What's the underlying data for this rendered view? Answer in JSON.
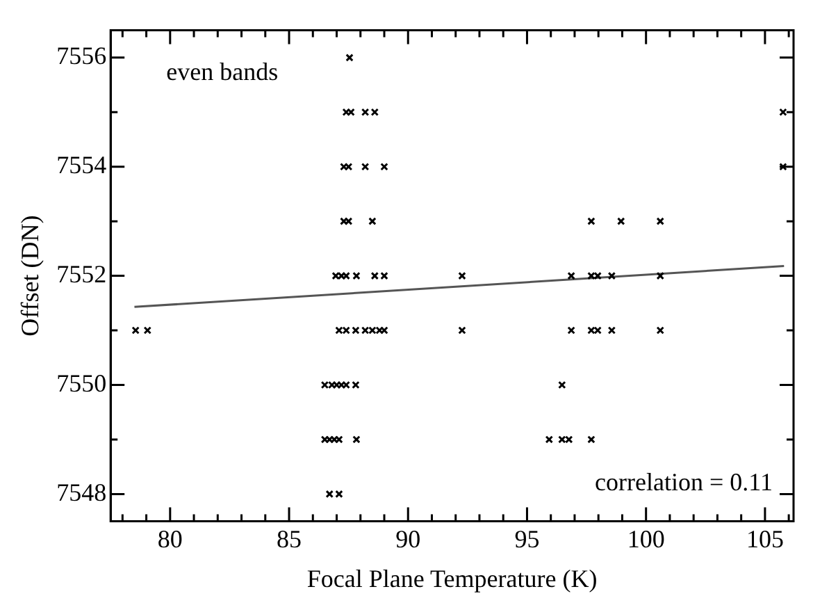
{
  "chart_data": {
    "type": "scatter",
    "xlabel": "Focal Plane Temperature (K)",
    "ylabel": "Offset (DN)",
    "annotations": [
      "even bands",
      "correlation = 0.11"
    ],
    "xlim": [
      77.5,
      106.2
    ],
    "ylim": [
      7547.5,
      7556.5
    ],
    "xticks": [
      {
        "value": 78,
        "label": null
      },
      {
        "value": 79,
        "label": null
      },
      80,
      {
        "value": 81,
        "label": null
      },
      {
        "value": 82,
        "label": null
      },
      {
        "value": 83,
        "label": null
      },
      {
        "value": 84,
        "label": null
      },
      85,
      {
        "value": 86,
        "label": null
      },
      {
        "value": 87,
        "label": null
      },
      {
        "value": 88,
        "label": null
      },
      {
        "value": 89,
        "label": null
      },
      90,
      {
        "value": 91,
        "label": null
      },
      {
        "value": 92,
        "label": null
      },
      {
        "value": 93,
        "label": null
      },
      {
        "value": 94,
        "label": null
      },
      95,
      {
        "value": 96,
        "label": null
      },
      {
        "value": 97,
        "label": null
      },
      {
        "value": 98,
        "label": null
      },
      {
        "value": 99,
        "label": null
      },
      100,
      {
        "value": 101,
        "label": null
      },
      {
        "value": 102,
        "label": null
      },
      {
        "value": 103,
        "label": null
      },
      {
        "value": 104,
        "label": null
      },
      105,
      {
        "value": 106,
        "label": null
      }
    ],
    "yticks": [
      7548,
      {
        "value": 7549,
        "label": null
      },
      7550,
      {
        "value": 7551,
        "label": null
      },
      7552,
      {
        "value": 7553,
        "label": null
      },
      7554,
      {
        "value": 7555,
        "label": null
      },
      7556
    ],
    "marker": "cross",
    "grid": false,
    "legend": false,
    "series": [
      {
        "type": "scatter",
        "color": "#000000",
        "x": [
          87.54,
          87.4,
          87.6,
          88.2,
          88.6,
          105.76,
          87.3,
          87.5,
          88.2,
          89.0,
          105.76,
          87.3,
          87.5,
          88.5,
          97.7,
          98.95,
          100.6,
          86.96,
          87.2,
          87.4,
          87.83,
          88.6,
          89.0,
          92.27,
          96.86,
          97.7,
          97.97,
          98.56,
          100.6,
          78.55,
          79.05,
          87.1,
          87.4,
          87.8,
          88.2,
          88.5,
          88.8,
          89.0,
          92.27,
          96.86,
          97.7,
          97.97,
          98.56,
          100.6,
          86.5,
          86.8,
          87.0,
          87.2,
          87.4,
          87.8,
          96.47,
          86.5,
          86.7,
          86.9,
          87.1,
          87.83,
          95.93,
          96.47,
          96.76,
          97.7,
          86.7,
          87.1
        ],
        "values": [
          7556,
          7555,
          7555,
          7555,
          7555,
          7555,
          7554,
          7554,
          7554,
          7554,
          7554,
          7553,
          7553,
          7553,
          7553,
          7553,
          7553,
          7552,
          7552,
          7552,
          7552,
          7552,
          7552,
          7552,
          7552,
          7552,
          7552,
          7552,
          7552,
          7551,
          7551,
          7551,
          7551,
          7551,
          7551,
          7551,
          7551,
          7551,
          7551,
          7551,
          7551,
          7551,
          7551,
          7551,
          7550,
          7550,
          7550,
          7550,
          7550,
          7550,
          7550,
          7549,
          7549,
          7549,
          7549,
          7549,
          7549,
          7549,
          7549,
          7549,
          7548,
          7548
        ]
      },
      {
        "type": "line",
        "color": "#555555",
        "marker": "none",
        "x": [
          78.5,
          105.8
        ],
        "values": [
          7551.43,
          7552.18
        ]
      }
    ]
  }
}
